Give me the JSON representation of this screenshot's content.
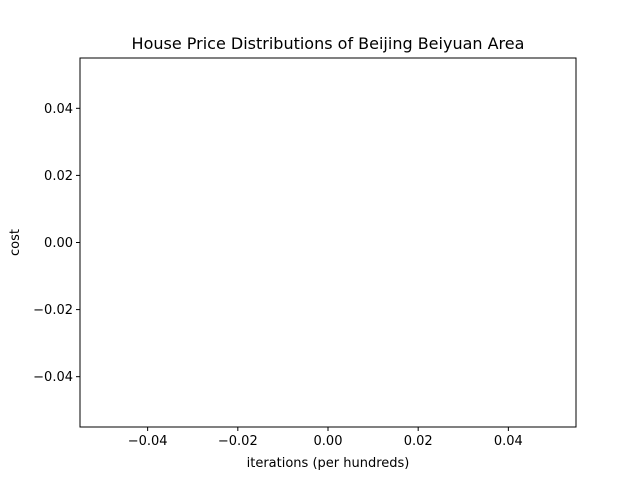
{
  "chart_data": {
    "type": "line",
    "title": "House Price Distributions of Beijing Beiyuan Area",
    "xlabel": "iterations (per hundreds)",
    "ylabel": "cost",
    "xlim": [
      -0.055,
      0.055
    ],
    "ylim": [
      -0.055,
      0.055
    ],
    "x_ticks": [
      -0.04,
      -0.02,
      0.0,
      0.02,
      0.04
    ],
    "y_ticks": [
      -0.04,
      -0.02,
      0.0,
      0.02,
      0.04
    ],
    "x_tick_labels": [
      "−0.04",
      "−0.02",
      "0.00",
      "0.02",
      "0.04"
    ],
    "y_tick_labels": [
      "−0.04",
      "−0.02",
      "0.00",
      "0.02",
      "0.04"
    ],
    "series": [],
    "grid": false,
    "legend": "none"
  }
}
